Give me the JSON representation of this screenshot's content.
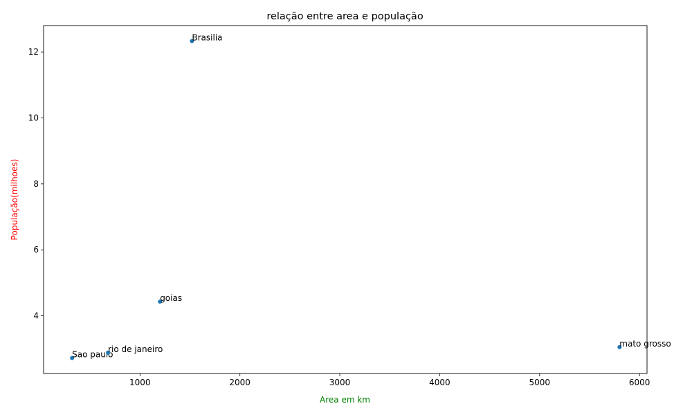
{
  "chart_data": {
    "type": "scatter",
    "title": "relação entre area e população",
    "xlabel": "Area em km",
    "ylabel": "População(milhoes)",
    "xlabel_color": "#008000",
    "ylabel_color": "#ff0000",
    "marker_color": "#1f77b4",
    "xlim": [
      35,
      6075
    ],
    "ylim": [
      2.25,
      12.8
    ],
    "x_ticks": [
      1000,
      2000,
      3000,
      4000,
      5000,
      6000
    ],
    "y_ticks": [
      4,
      6,
      8,
      10,
      12
    ],
    "grid": false,
    "points": [
      {
        "label": "Sao paulo",
        "x": 320,
        "y": 2.72
      },
      {
        "label": "rio de janeiro",
        "x": 680,
        "y": 2.88
      },
      {
        "label": "goias",
        "x": 1200,
        "y": 4.43
      },
      {
        "label": "Brasilia",
        "x": 1520,
        "y": 12.33
      },
      {
        "label": "mato grosso",
        "x": 5800,
        "y": 3.05
      }
    ]
  }
}
